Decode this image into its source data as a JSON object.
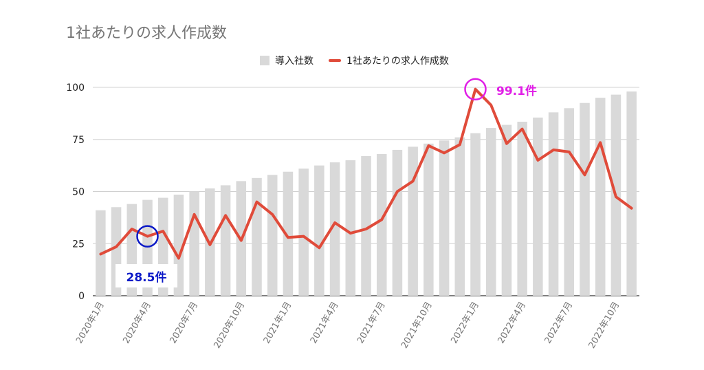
{
  "chart_data": {
    "type": "bar+line",
    "title": "1社あたりの求人作成数",
    "ylim": [
      0,
      100
    ],
    "yticks": [
      0,
      25,
      50,
      75,
      100
    ],
    "grid": true,
    "legend_position": "top",
    "legend": [
      "導入社数",
      "1社あたりの求人作成数"
    ],
    "x_tick_labels": [
      "2020年1月",
      "2020年4月",
      "2020年7月",
      "2020年10月",
      "2021年1月",
      "2021年4月",
      "2021年7月",
      "2021年10月",
      "2022年1月",
      "2022年4月",
      "2022年7月",
      "2022年10月"
    ],
    "x_tick_every": 3,
    "series": [
      {
        "name": "導入社数",
        "type": "bar",
        "color": "#d9d9d9",
        "values": [
          41,
          42.5,
          44,
          46,
          47,
          48.5,
          50,
          51.5,
          53,
          55,
          56.5,
          58,
          59.5,
          61,
          62.5,
          64,
          65,
          67,
          68,
          70,
          71.5,
          73,
          74.5,
          76,
          78,
          80.5,
          82,
          83.5,
          85.5,
          88,
          90,
          92.5,
          95,
          96.5,
          98
        ]
      },
      {
        "name": "1社あたりの求人作成数",
        "type": "line",
        "color": "#e04b3a",
        "values": [
          20,
          23.5,
          32,
          28.5,
          31,
          18,
          39,
          24.5,
          38.5,
          26.5,
          45,
          39,
          28,
          28.5,
          23,
          35,
          30,
          32,
          36.5,
          50,
          55,
          72,
          68.5,
          72.5,
          99.1,
          91.5,
          73,
          80,
          65,
          70,
          69,
          58,
          73.5,
          47.5,
          42
        ]
      }
    ],
    "annotations": [
      {
        "text": "28.5件",
        "color": "#0b19c7",
        "index": 3
      },
      {
        "text": "99.1件",
        "color": "#e01ee6",
        "index": 24
      }
    ]
  }
}
